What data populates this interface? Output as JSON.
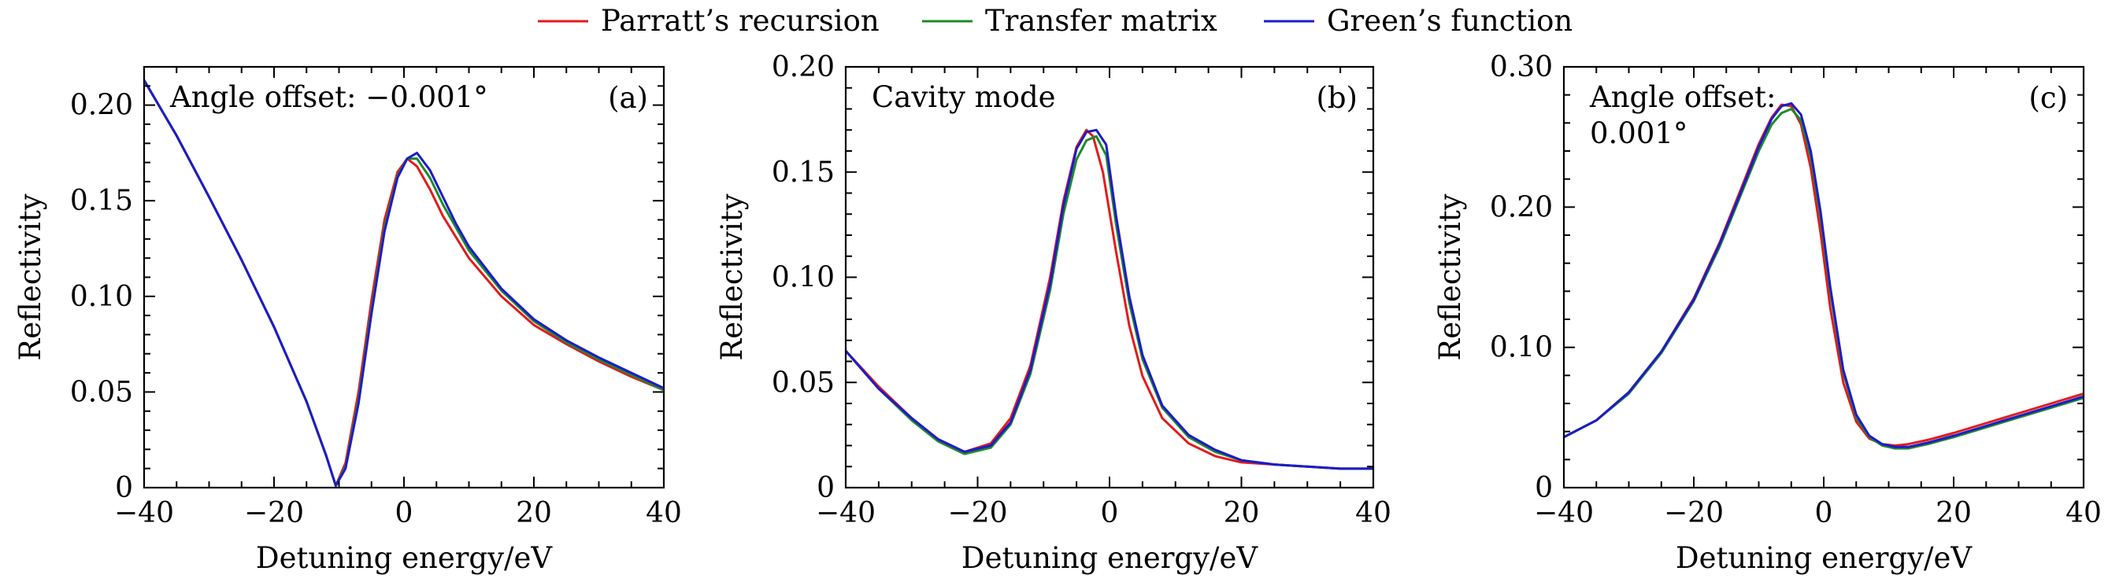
{
  "legend": [
    {
      "name": "Parratt’s recursion",
      "color": "#e41a1c"
    },
    {
      "name": "Transfer matrix",
      "color": "#1f8a2a"
    },
    {
      "name": "Green’s function",
      "color": "#1c1cc8"
    }
  ],
  "chart_data": [
    {
      "type": "line",
      "panel_label": "(a)",
      "annotation": [
        "Angle offset: −0.001°"
      ],
      "xlabel": "Detuning energy/eV",
      "ylabel": "Reflectivity",
      "xlim": [
        -40,
        40
      ],
      "ylim": [
        0,
        0.22
      ],
      "xticks": [
        -40,
        -20,
        0,
        20,
        40
      ],
      "xtick_labels": [
        "−40",
        "−20",
        "0",
        "20",
        "40"
      ],
      "yticks": [
        0,
        0.05,
        0.1,
        0.15,
        0.2
      ],
      "ytick_labels": [
        "0",
        "0.05",
        "0.10",
        "0.15",
        "0.20"
      ],
      "legend_position": "top-center",
      "grid": false,
      "series": [
        {
          "name": "Parratt’s recursion",
          "x": [
            -40,
            -35,
            -30,
            -25,
            -20,
            -15,
            -12,
            -10.5,
            -9,
            -7,
            -5,
            -3,
            -1,
            0.5,
            2,
            4,
            6,
            8,
            10,
            15,
            20,
            25,
            30,
            35,
            40
          ],
          "y": [
            0.213,
            0.184,
            0.152,
            0.119,
            0.084,
            0.045,
            0.017,
            0.001,
            0.013,
            0.05,
            0.098,
            0.14,
            0.165,
            0.172,
            0.168,
            0.156,
            0.142,
            0.131,
            0.12,
            0.1,
            0.085,
            0.075,
            0.066,
            0.058,
            0.051
          ]
        },
        {
          "name": "Transfer matrix",
          "x": [
            -40,
            -35,
            -30,
            -25,
            -20,
            -15,
            -12,
            -10.5,
            -9,
            -7,
            -5,
            -3,
            -1,
            0.5,
            2,
            4,
            6,
            8,
            10,
            15,
            20,
            25,
            30,
            35,
            40
          ],
          "y": [
            0.213,
            0.184,
            0.152,
            0.119,
            0.084,
            0.045,
            0.017,
            0.001,
            0.011,
            0.046,
            0.093,
            0.136,
            0.163,
            0.172,
            0.172,
            0.162,
            0.148,
            0.136,
            0.124,
            0.103,
            0.087,
            0.076,
            0.067,
            0.059,
            0.051
          ]
        },
        {
          "name": "Green’s function",
          "x": [
            -40,
            -35,
            -30,
            -25,
            -20,
            -15,
            -12,
            -10.5,
            -9,
            -7,
            -5,
            -3,
            -1,
            0.5,
            2,
            4,
            6,
            8,
            10,
            15,
            20,
            25,
            30,
            35,
            40
          ],
          "y": [
            0.213,
            0.184,
            0.152,
            0.119,
            0.084,
            0.045,
            0.017,
            0.001,
            0.01,
            0.044,
            0.091,
            0.134,
            0.162,
            0.172,
            0.175,
            0.166,
            0.152,
            0.138,
            0.126,
            0.104,
            0.088,
            0.077,
            0.068,
            0.06,
            0.052
          ]
        }
      ]
    },
    {
      "type": "line",
      "panel_label": "(b)",
      "annotation": [
        "Cavity mode"
      ],
      "xlabel": "Detuning energy/eV",
      "ylabel": "Reflectivity",
      "xlim": [
        -40,
        40
      ],
      "ylim": [
        0,
        0.2
      ],
      "xticks": [
        -40,
        -20,
        0,
        20,
        40
      ],
      "xtick_labels": [
        "−40",
        "−20",
        "0",
        "20",
        "40"
      ],
      "yticks": [
        0,
        0.05,
        0.1,
        0.15,
        0.2
      ],
      "ytick_labels": [
        "0",
        "0.05",
        "0.10",
        "0.15",
        "0.20"
      ],
      "grid": false,
      "series": [
        {
          "name": "Parratt’s recursion",
          "x": [
            -40,
            -35,
            -30,
            -26,
            -22,
            -18,
            -15,
            -12,
            -9,
            -7,
            -5,
            -3.5,
            -2.5,
            -1,
            1,
            3,
            5,
            8,
            12,
            16,
            20,
            25,
            30,
            35,
            40
          ],
          "y": [
            0.065,
            0.048,
            0.033,
            0.023,
            0.017,
            0.021,
            0.033,
            0.058,
            0.1,
            0.136,
            0.162,
            0.17,
            0.167,
            0.15,
            0.112,
            0.077,
            0.053,
            0.033,
            0.021,
            0.015,
            0.012,
            0.011,
            0.01,
            0.009,
            0.009
          ]
        },
        {
          "name": "Transfer matrix",
          "x": [
            -40,
            -35,
            -30,
            -26,
            -22,
            -18,
            -15,
            -12,
            -9,
            -7,
            -5,
            -3.5,
            -2,
            -0.5,
            1,
            3,
            5,
            8,
            12,
            16,
            20,
            25,
            30,
            35,
            40
          ],
          "y": [
            0.065,
            0.047,
            0.032,
            0.022,
            0.016,
            0.019,
            0.03,
            0.054,
            0.094,
            0.13,
            0.156,
            0.165,
            0.167,
            0.158,
            0.125,
            0.088,
            0.061,
            0.038,
            0.024,
            0.017,
            0.013,
            0.011,
            0.01,
            0.009,
            0.009
          ]
        },
        {
          "name": "Green’s function",
          "x": [
            -40,
            -35,
            -30,
            -26,
            -22,
            -18,
            -15,
            -12,
            -9,
            -7,
            -5,
            -3.5,
            -2,
            -0.5,
            1,
            3,
            5,
            8,
            12,
            16,
            20,
            25,
            30,
            35,
            40
          ],
          "y": [
            0.065,
            0.047,
            0.033,
            0.023,
            0.017,
            0.02,
            0.031,
            0.056,
            0.097,
            0.134,
            0.161,
            0.169,
            0.17,
            0.163,
            0.129,
            0.091,
            0.063,
            0.039,
            0.025,
            0.018,
            0.013,
            0.011,
            0.01,
            0.009,
            0.009
          ]
        }
      ]
    },
    {
      "type": "line",
      "panel_label": "(c)",
      "annotation": [
        "Angle offset:",
        "0.001°"
      ],
      "xlabel": "Detuning energy/eV",
      "ylabel": "Reflectivity",
      "xlim": [
        -40,
        40
      ],
      "ylim": [
        0,
        0.3
      ],
      "xticks": [
        -40,
        -20,
        0,
        20,
        40
      ],
      "xtick_labels": [
        "−40",
        "−20",
        "0",
        "20",
        "40"
      ],
      "yticks": [
        0,
        0.1,
        0.2,
        0.3
      ],
      "ytick_labels": [
        "0",
        "0.10",
        "0.20",
        "0.30"
      ],
      "grid": false,
      "series": [
        {
          "name": "Parratt’s recursion",
          "x": [
            -40,
            -35,
            -30,
            -25,
            -20,
            -16,
            -13,
            -10,
            -8,
            -6.5,
            -5,
            -3.5,
            -2,
            -0.5,
            1,
            3,
            5,
            7,
            9,
            11,
            13,
            16,
            20,
            25,
            30,
            35,
            40
          ],
          "y": [
            0.036,
            0.048,
            0.068,
            0.097,
            0.135,
            0.175,
            0.21,
            0.245,
            0.264,
            0.273,
            0.272,
            0.259,
            0.228,
            0.182,
            0.128,
            0.075,
            0.047,
            0.035,
            0.031,
            0.03,
            0.031,
            0.034,
            0.039,
            0.046,
            0.053,
            0.06,
            0.067
          ]
        },
        {
          "name": "Transfer matrix",
          "x": [
            -40,
            -35,
            -30,
            -25,
            -20,
            -16,
            -13,
            -10,
            -8,
            -6.5,
            -5,
            -3.5,
            -2,
            -0.5,
            1,
            3,
            5,
            7,
            9,
            11,
            13,
            16,
            20,
            25,
            30,
            35,
            40
          ],
          "y": [
            0.036,
            0.048,
            0.067,
            0.096,
            0.133,
            0.172,
            0.206,
            0.24,
            0.259,
            0.267,
            0.27,
            0.262,
            0.236,
            0.193,
            0.14,
            0.082,
            0.05,
            0.036,
            0.03,
            0.028,
            0.028,
            0.031,
            0.036,
            0.043,
            0.05,
            0.057,
            0.064
          ]
        },
        {
          "name": "Green’s function",
          "x": [
            -40,
            -35,
            -30,
            -25,
            -20,
            -16,
            -13,
            -10,
            -8,
            -6.5,
            -5,
            -3.5,
            -2,
            -0.5,
            1,
            3,
            5,
            7,
            9,
            11,
            13,
            16,
            20,
            25,
            30,
            35,
            40
          ],
          "y": [
            0.036,
            0.048,
            0.068,
            0.097,
            0.134,
            0.174,
            0.208,
            0.243,
            0.263,
            0.272,
            0.274,
            0.266,
            0.24,
            0.197,
            0.143,
            0.084,
            0.052,
            0.037,
            0.031,
            0.029,
            0.029,
            0.032,
            0.037,
            0.044,
            0.051,
            0.058,
            0.065
          ]
        }
      ]
    }
  ]
}
